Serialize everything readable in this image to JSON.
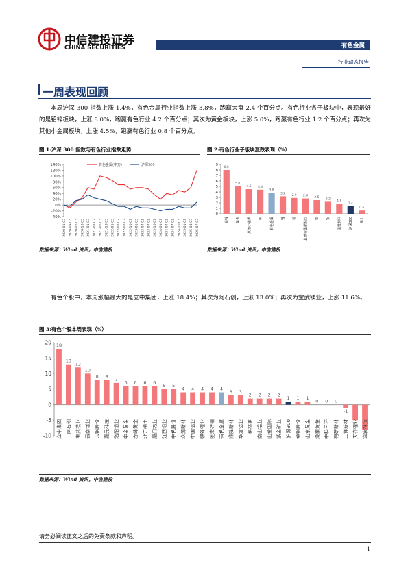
{
  "header": {
    "logo_cn": "中信建投证券",
    "logo_en": "CHINA SECURITIES",
    "sector": "有色金属",
    "report_type": "行业动态报告"
  },
  "section_title": "一周表现回顾",
  "paragraphs": [
    "本周沪深 300 指数上涨 1.4%，有色金属行业指数上涨 3.8%，跑赢大盘 2.4 个百分点。有色行业各子板块中，表现最好的是铅锌板块，上涨 8.0%，跑赢有色行业 4.2 个百分点；其次为黄金板块，上涨 5.0%，跑赢有色行业 1.2 个百分点；再次为其他小金属板块，上涨 4.5%，跑赢有色行业 0.8 个百分点。",
    "有色个股中，本周涨幅最大的是立中集团，上涨 18.4%；其次为阿石创，上涨 13.0%；再次为宝武镁业，上涨 11.6%。"
  ],
  "chart_data": [
    {
      "type": "line",
      "title": "图 1:沪深 300 指数与有色行业指数走势",
      "source": "数据来源：Wind 资讯，中信建投",
      "categories": [
        "2020-01-03",
        "2020-04-03",
        "2020-07-03",
        "2020-10-03",
        "2021-01-03",
        "2021-04-03",
        "2021-07-03",
        "2021-10-03",
        "2022-01-03",
        "2022-04-03",
        "2022-07-03",
        "2022-10-03",
        "2023-01-03",
        "2023-04-03",
        "2023-07-03",
        "2023-10-03",
        "2024-01-03",
        "2024-04-03",
        "2024-07-03",
        "2024-10-03",
        "2025-01-03",
        "2025-04-03",
        "2025-07-03"
      ],
      "series": [
        {
          "name": "有色金属(申万)",
          "color": "#e8312f",
          "values": [
            0,
            -10,
            10,
            25,
            60,
            55,
            100,
            95,
            85,
            70,
            70,
            55,
            60,
            60,
            55,
            35,
            20,
            40,
            35,
            50,
            45,
            60,
            120
          ]
        },
        {
          "name": "沪深300",
          "color": "#1f4e8c",
          "values": [
            0,
            -5,
            15,
            20,
            35,
            25,
            20,
            15,
            5,
            -5,
            -5,
            -15,
            -5,
            -10,
            -10,
            -15,
            -20,
            -15,
            -15,
            -5,
            -10,
            -10,
            10
          ]
        }
      ],
      "ylim": [
        -40,
        140
      ],
      "yticks": [
        {
          "value": -40,
          "label": "-40%"
        },
        {
          "value": -20,
          "label": "-20%"
        },
        {
          "value": 0,
          "label": "0%"
        },
        {
          "value": 20,
          "label": "20%"
        },
        {
          "value": 40,
          "label": "40%"
        },
        {
          "value": 60,
          "label": "60%"
        },
        {
          "value": 80,
          "label": "80%"
        },
        {
          "value": 100,
          "label": "100%"
        },
        {
          "value": 120,
          "label": "120%"
        },
        {
          "value": 140,
          "label": "140%"
        }
      ]
    },
    {
      "type": "bar",
      "title": "图 2:有色行业子版块涨跌表现（%）",
      "source": "数据来源：Wind 资讯，中信建投",
      "categories": [
        "铅锌",
        "黄金",
        "其他小金属",
        "钨",
        "有色金属",
        "锂",
        "铜",
        "其他金属新材料",
        "铝",
        "钼",
        "磁性材料",
        "沪深300",
        "稀土"
      ],
      "values": [
        8.0,
        5.0,
        4.5,
        4.4,
        3.8,
        3.2,
        2.9,
        2.8,
        2.5,
        2.2,
        1.8,
        1.4,
        0.6
      ],
      "value_labels": [
        "8.0",
        "5.0",
        "4.5",
        "4.4",
        "3.8",
        "3.2",
        "2.9",
        "2.8",
        "2.5",
        "2.2",
        "1.8",
        "1.4",
        "0.6"
      ],
      "colors": [
        "#f4777a",
        "#f4777a",
        "#f4777a",
        "#f4777a",
        "#8eaacb",
        "#f4777a",
        "#f4777a",
        "#f4777a",
        "#f4777a",
        "#f4777a",
        "#f4777a",
        "#203864",
        "#f4777a"
      ],
      "ylim": [
        0,
        9
      ],
      "yticks": [
        0,
        1,
        2,
        3,
        4,
        5,
        6,
        7,
        8,
        9
      ]
    },
    {
      "type": "bar",
      "title": "图 3:有色个股本周表现（%）",
      "source": "数据来源：Wind 资讯，中信建投",
      "categories": [
        "立中集团",
        "阿石创",
        "宝武镁业",
        "云南锗业",
        "云铝股份",
        "嘉元科技",
        "洛阳钼业",
        "中金黄金",
        "赤峰黄金",
        "北方稀土",
        "厦门钨业",
        "江西铜业",
        "中色股份",
        "众源新材",
        "中国铝业",
        "赣锋锂业",
        "驰宏锌锗",
        "有色金属",
        "鼎胜新材",
        "华友钴业",
        "格林美",
        "南山铝业",
        "山金国际",
        "紫金矿业",
        "沪深300",
        "金钼股份",
        "山东黄金",
        "湖南黄金",
        "中科三环",
        "有研新材",
        "三祥新材",
        "天齐锂业",
        "宜安科技"
      ],
      "values": [
        18,
        13,
        12,
        10,
        8,
        8,
        7,
        6,
        6,
        6,
        6,
        5,
        5,
        4,
        4,
        4,
        4,
        4,
        3,
        3,
        2,
        2,
        2,
        2,
        1,
        1,
        1,
        0,
        0,
        0,
        -1,
        -5,
        -8
      ],
      "colors": [
        "#f4777a",
        "#f4777a",
        "#f4777a",
        "#f4777a",
        "#f4777a",
        "#f4777a",
        "#f4777a",
        "#f4777a",
        "#f4777a",
        "#f4777a",
        "#f4777a",
        "#f4777a",
        "#f4777a",
        "#f4777a",
        "#f4777a",
        "#f4777a",
        "#f4777a",
        "#8eaacb",
        "#f4777a",
        "#f4777a",
        "#f4777a",
        "#f4777a",
        "#f4777a",
        "#f4777a",
        "#203864",
        "#f4777a",
        "#f4777a",
        "#f4777a",
        "#f4777a",
        "#f4777a",
        "#f4777a",
        "#f4777a",
        "#f4777a"
      ],
      "ylim": [
        -10,
        20
      ],
      "yticks": [
        -10,
        -5,
        0,
        5,
        10,
        15,
        20
      ]
    }
  ],
  "footer": {
    "disclaimer": "请务必阅读正文之后的免责条款和声明。",
    "page": "1"
  }
}
